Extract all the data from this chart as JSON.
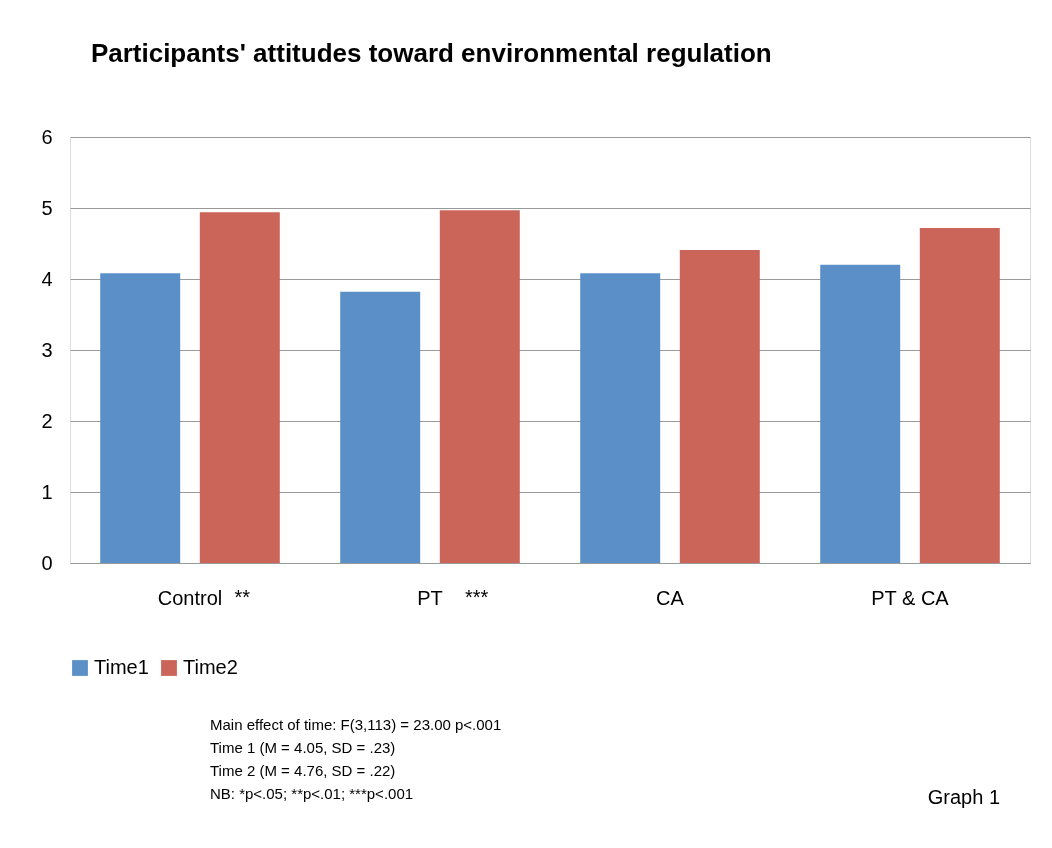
{
  "chart_data": {
    "type": "bar",
    "title": "Participants' attitudes toward environmental regulation",
    "categories": [
      "Control",
      "PT",
      "CA",
      "PT & CA"
    ],
    "series": [
      {
        "name": "Time1",
        "color": "#5b8fc7",
        "values": [
          4.08,
          3.82,
          4.08,
          4.2
        ]
      },
      {
        "name": "Time2",
        "color": "#cb655a",
        "values": [
          4.94,
          4.97,
          4.41,
          4.72
        ]
      }
    ],
    "ylim": [
      0,
      6
    ],
    "yticks": [
      0,
      1,
      2,
      3,
      4,
      5,
      6
    ],
    "grid": "y",
    "legend": "bottom",
    "annotations": [
      "**",
      "***",
      "Main effect of time: F(3,113) = 23.00 p<.001",
      "Time 1 (M = 4.05, SD = .23)",
      "Time 2 (M = 4.76, SD = .22)",
      "NB: *p<.05; **p<.01; ***p<.001",
      "Graph 1"
    ]
  }
}
